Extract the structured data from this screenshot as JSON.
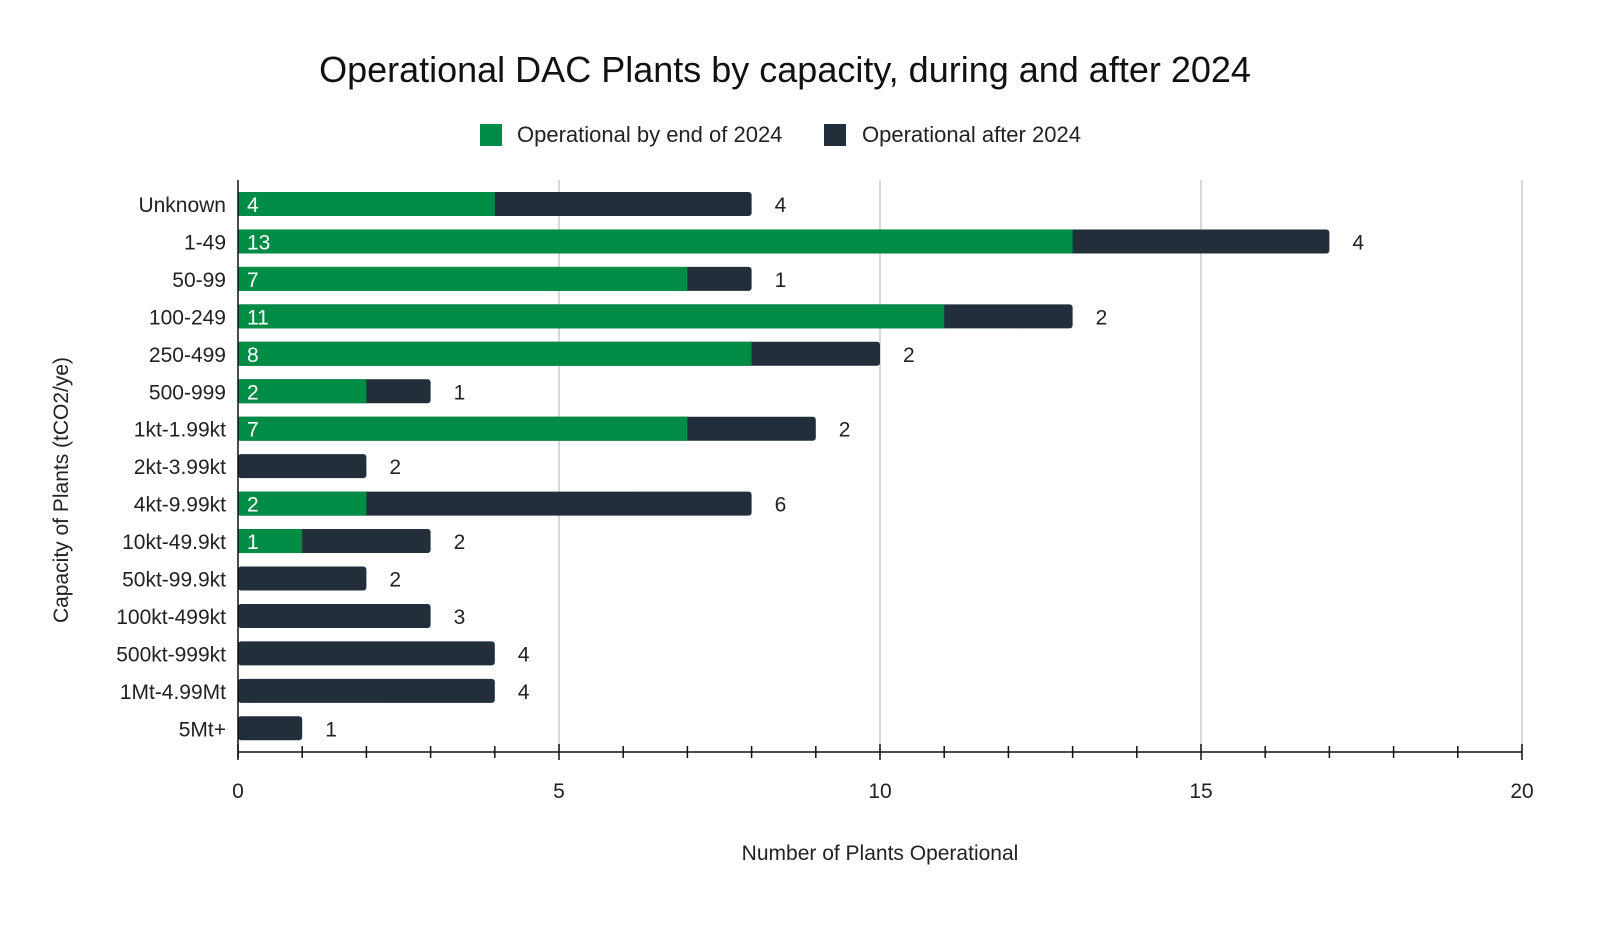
{
  "chart_data": {
    "type": "bar",
    "orientation": "horizontal",
    "stacked": true,
    "title": "Operational DAC Plants by capacity, during and after 2024",
    "xlabel": "Number of Plants Operational",
    "ylabel": "Capacity of Plants (tCO2/ye)",
    "xlim": [
      0,
      20
    ],
    "xticks": [
      0,
      5,
      10,
      15,
      20
    ],
    "grid": true,
    "legend_position": "top",
    "categories": [
      "Unknown",
      "1-49",
      "50-99",
      "100-249",
      "250-499",
      "500-999",
      "1kt-1.99kt",
      "2kt-3.99kt",
      "4kt-9.99kt",
      "10kt-49.9kt",
      "50kt-99.9kt",
      "100kt-499kt",
      "500kt-999kt",
      "1Mt-4.99Mt",
      "5Mt+"
    ],
    "series": [
      {
        "name": "Operational by end of 2024",
        "color": "#008c45",
        "values": [
          4,
          13,
          7,
          11,
          8,
          2,
          7,
          0,
          2,
          1,
          0,
          0,
          0,
          0,
          0
        ]
      },
      {
        "name": "Operational after 2024",
        "color": "#222f3a",
        "values": [
          4,
          4,
          1,
          2,
          2,
          1,
          2,
          2,
          6,
          2,
          2,
          3,
          4,
          4,
          1
        ]
      }
    ]
  }
}
